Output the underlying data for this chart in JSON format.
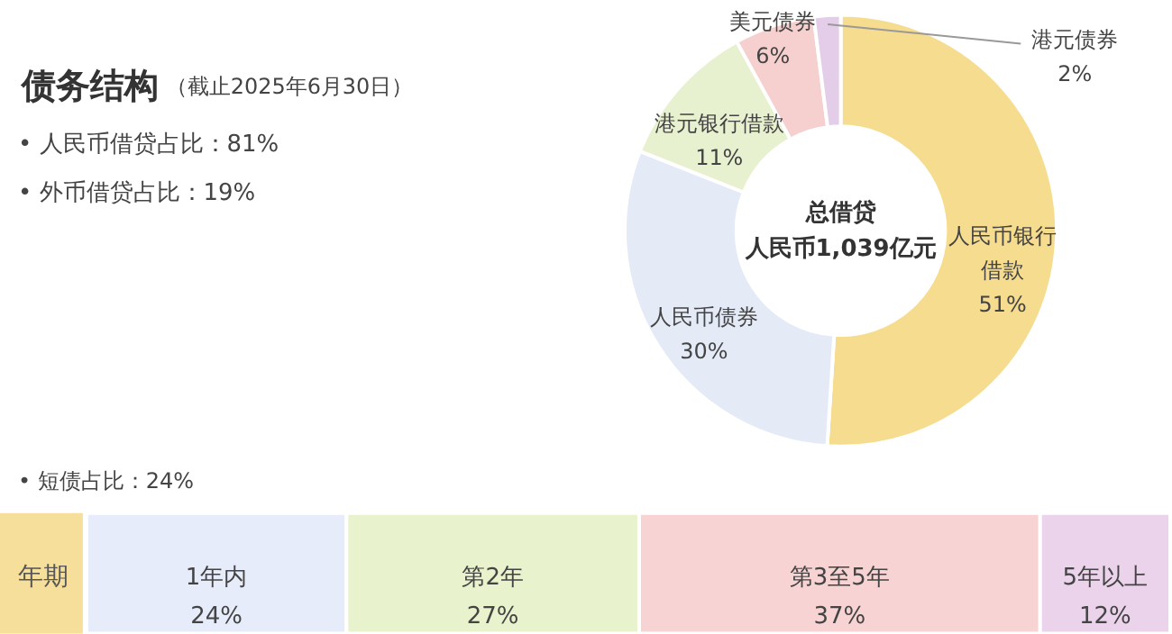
{
  "chart_data": [
    {
      "type": "donut",
      "title": "债务结构",
      "subtitle": "（截止2025年6月30日）",
      "annotations": [
        "• 人民币借贷占比：81%",
        "• 外币借贷占比：19%",
        "总借贷",
        "人民币1,039亿元"
      ],
      "categories": [
        "人民币银行借款",
        "人民币债券",
        "港元银行借款",
        "美元债券",
        "港元债券"
      ],
      "values": [
        51,
        30,
        11,
        6,
        2
      ],
      "value_labels": [
        "51%",
        "30%",
        "11%",
        "6%",
        "2%"
      ],
      "colors": [
        "#f6dc8e",
        "#e4ebf7",
        "#e8f1cf",
        "#f6cfcf",
        "#e4cde8"
      ]
    },
    {
      "type": "bar",
      "stacked": true,
      "orientation": "horizontal",
      "categories": [
        "年期"
      ],
      "annotations": [
        "• 短债占比：24%"
      ],
      "series": [
        {
          "name": "1年内",
          "color": "#e6ecf9",
          "values": [
            24
          ],
          "value_labels": [
            "24%"
          ]
        },
        {
          "name": "第2年",
          "color": "#e8f2cc",
          "values": [
            27
          ],
          "value_labels": [
            "27%"
          ]
        },
        {
          "name": "第3至5年",
          "color": "#f8d3d3",
          "values": [
            37
          ],
          "value_labels": [
            "37%"
          ]
        },
        {
          "name": "5年以上",
          "color": "#ecd3ec",
          "values": [
            12
          ],
          "value_labels": [
            "12%"
          ]
        }
      ]
    }
  ]
}
